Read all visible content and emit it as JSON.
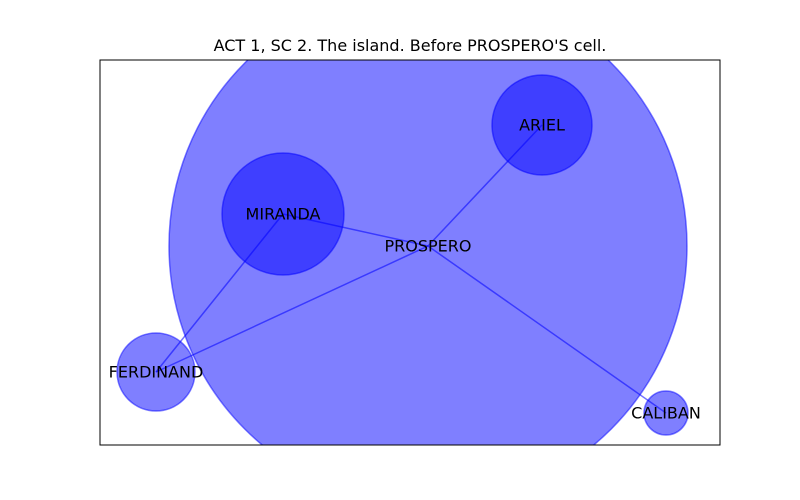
{
  "title": "ACT 1, SC 2. The island. Before PROSPERO'S cell.",
  "colors": {
    "node_fill": "#0000ff",
    "node_stroke": "#0000ff",
    "edge": "#0000ff",
    "frame": "#000000"
  },
  "nodes": [
    {
      "id": "prospero",
      "label": "PROSPERO"
    },
    {
      "id": "miranda",
      "label": "MIRANDA"
    },
    {
      "id": "ariel",
      "label": "ARIEL"
    },
    {
      "id": "ferdinand",
      "label": "FERDINAND"
    },
    {
      "id": "caliban",
      "label": "CALIBAN"
    }
  ],
  "edges": [
    {
      "source": "prospero",
      "target": "miranda"
    },
    {
      "source": "prospero",
      "target": "ariel"
    },
    {
      "source": "prospero",
      "target": "ferdinand"
    },
    {
      "source": "prospero",
      "target": "caliban"
    },
    {
      "source": "miranda",
      "target": "ferdinand"
    }
  ]
}
